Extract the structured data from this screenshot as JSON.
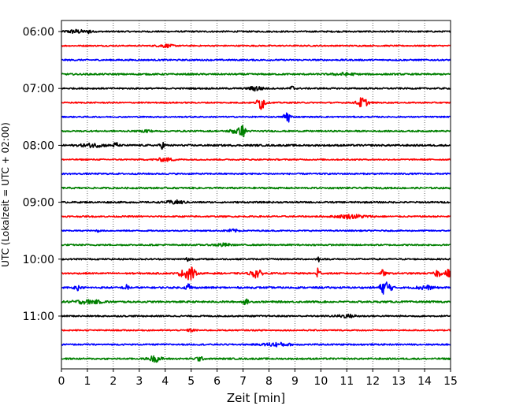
{
  "chart_data": {
    "type": "line",
    "title": "",
    "xlabel": "Zeit  [min]",
    "ylabel": "UTC (Lokalzeit = UTC + 02:00)",
    "xlim": [
      0,
      15
    ],
    "x_ticks": [
      0,
      1,
      2,
      3,
      4,
      5,
      6,
      7,
      8,
      9,
      10,
      11,
      12,
      13,
      14,
      15
    ],
    "x_tick_labels": [
      "0",
      "1",
      "2",
      "3",
      "4",
      "5",
      "6",
      "7",
      "8",
      "9",
      "10",
      "11",
      "12",
      "13",
      "14",
      "15"
    ],
    "y_tick_labels": [
      "06:00",
      "07:00",
      "08:00",
      "09:00",
      "10:00",
      "11:00"
    ],
    "vertical_grid": true,
    "grid_style": "dotted",
    "legend": "none",
    "trace_minutes": 15,
    "color_cycle": [
      "#000000",
      "#ff0000",
      "#0000ff",
      "#008000"
    ],
    "series": [
      {
        "time": "06:00",
        "color": "#000000",
        "noise": 0.09,
        "events": [
          {
            "t": 0.55,
            "amp": 0.22,
            "width": 0.35
          },
          {
            "t": 1.1,
            "amp": 0.28,
            "width": 0.08
          }
        ]
      },
      {
        "time": "06:15",
        "color": "#ff0000",
        "noise": 0.08,
        "events": [
          {
            "t": 4.0,
            "amp": 0.18,
            "width": 0.3
          }
        ]
      },
      {
        "time": "06:30",
        "color": "#0000ff",
        "noise": 0.09,
        "events": []
      },
      {
        "time": "06:45",
        "color": "#008000",
        "noise": 0.1,
        "events": [
          {
            "t": 10.9,
            "amp": 0.16,
            "width": 0.4
          }
        ]
      },
      {
        "time": "07:00",
        "color": "#000000",
        "noise": 0.09,
        "events": [
          {
            "t": 7.5,
            "amp": 0.3,
            "width": 0.25
          },
          {
            "t": 8.9,
            "amp": 0.3,
            "width": 0.1
          }
        ]
      },
      {
        "time": "07:15",
        "color": "#ff0000",
        "noise": 0.08,
        "events": [
          {
            "t": 7.7,
            "amp": 0.9,
            "width": 0.15
          },
          {
            "t": 11.6,
            "amp": 0.65,
            "width": 0.2
          }
        ]
      },
      {
        "time": "07:30",
        "color": "#0000ff",
        "noise": 0.08,
        "events": [
          {
            "t": 8.7,
            "amp": 0.85,
            "width": 0.12
          }
        ]
      },
      {
        "time": "07:45",
        "color": "#008000",
        "noise": 0.09,
        "events": [
          {
            "t": 6.8,
            "amp": 0.35,
            "width": 0.3
          },
          {
            "t": 7.0,
            "amp": 0.55,
            "width": 0.08
          },
          {
            "t": 3.3,
            "amp": 0.22,
            "width": 0.15
          }
        ]
      },
      {
        "time": "08:00",
        "color": "#000000",
        "noise": 0.11,
        "events": [
          {
            "t": 1.2,
            "amp": 0.2,
            "width": 0.45
          },
          {
            "t": 2.1,
            "amp": 0.45,
            "width": 0.08
          },
          {
            "t": 3.9,
            "amp": 0.4,
            "width": 0.1
          }
        ]
      },
      {
        "time": "08:15",
        "color": "#ff0000",
        "noise": 0.08,
        "events": [
          {
            "t": 4.0,
            "amp": 0.2,
            "width": 0.35
          }
        ]
      },
      {
        "time": "08:30",
        "color": "#0000ff",
        "noise": 0.09,
        "events": []
      },
      {
        "time": "08:45",
        "color": "#008000",
        "noise": 0.1,
        "events": []
      },
      {
        "time": "09:00",
        "color": "#000000",
        "noise": 0.1,
        "events": [
          {
            "t": 4.4,
            "amp": 0.2,
            "width": 0.35
          }
        ]
      },
      {
        "time": "09:15",
        "color": "#ff0000",
        "noise": 0.09,
        "events": [
          {
            "t": 11.2,
            "amp": 0.22,
            "width": 0.6
          }
        ]
      },
      {
        "time": "09:30",
        "color": "#0000ff",
        "noise": 0.08,
        "events": [
          {
            "t": 1.4,
            "amp": 0.2,
            "width": 0.05
          },
          {
            "t": 6.6,
            "amp": 0.16,
            "width": 0.25
          }
        ]
      },
      {
        "time": "09:45",
        "color": "#008000",
        "noise": 0.09,
        "events": [
          {
            "t": 6.2,
            "amp": 0.18,
            "width": 0.3
          }
        ]
      },
      {
        "time": "10:00",
        "color": "#000000",
        "noise": 0.09,
        "events": [
          {
            "t": 4.9,
            "amp": 0.3,
            "width": 0.1
          },
          {
            "t": 9.9,
            "amp": 0.3,
            "width": 0.06
          }
        ]
      },
      {
        "time": "10:15",
        "color": "#ff0000",
        "noise": 0.1,
        "events": [
          {
            "t": 4.95,
            "amp": 1.0,
            "width": 0.18
          },
          {
            "t": 7.5,
            "amp": 0.55,
            "width": 0.2
          },
          {
            "t": 9.9,
            "amp": 1.1,
            "width": 0.06
          },
          {
            "t": 12.4,
            "amp": 0.45,
            "width": 0.08
          },
          {
            "t": 14.5,
            "amp": 0.45,
            "width": 0.12
          },
          {
            "t": 14.9,
            "amp": 0.5,
            "width": 0.1
          },
          {
            "t": 4.6,
            "amp": 0.4,
            "width": 0.08
          }
        ]
      },
      {
        "time": "10:30",
        "color": "#0000ff",
        "noise": 0.11,
        "events": [
          {
            "t": 0.6,
            "amp": 0.3,
            "width": 0.1
          },
          {
            "t": 2.5,
            "amp": 0.3,
            "width": 0.12
          },
          {
            "t": 4.9,
            "amp": 0.55,
            "width": 0.1
          },
          {
            "t": 12.5,
            "amp": 0.9,
            "width": 0.2
          },
          {
            "t": 14.0,
            "amp": 0.25,
            "width": 0.3
          }
        ]
      },
      {
        "time": "10:45",
        "color": "#008000",
        "noise": 0.11,
        "events": [
          {
            "t": 1.0,
            "amp": 0.2,
            "width": 0.6
          },
          {
            "t": 7.1,
            "amp": 0.3,
            "width": 0.1
          }
        ]
      },
      {
        "time": "11:00",
        "color": "#000000",
        "noise": 0.09,
        "events": [
          {
            "t": 11.0,
            "amp": 0.18,
            "width": 0.4
          }
        ]
      },
      {
        "time": "11:15",
        "color": "#ff0000",
        "noise": 0.08,
        "events": [
          {
            "t": 5.0,
            "amp": 0.16,
            "width": 0.15
          }
        ]
      },
      {
        "time": "11:30",
        "color": "#0000ff",
        "noise": 0.09,
        "events": [
          {
            "t": 8.3,
            "amp": 0.22,
            "width": 0.5
          }
        ]
      },
      {
        "time": "11:45",
        "color": "#008000",
        "noise": 0.1,
        "events": [
          {
            "t": 3.6,
            "amp": 0.35,
            "width": 0.25
          },
          {
            "t": 5.3,
            "amp": 0.25,
            "width": 0.15
          }
        ]
      }
    ]
  }
}
